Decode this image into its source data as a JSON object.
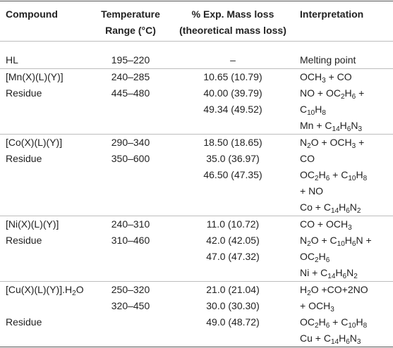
{
  "table": {
    "header": [
      [
        "Compound"
      ],
      [
        "Temperature",
        "Range (°C)"
      ],
      [
        "% Exp. Mass loss",
        "(theoretical mass loss)"
      ],
      [
        "Interpretation"
      ]
    ],
    "groups": [
      {
        "compound": [
          "HL"
        ],
        "temperature": [
          "195–220"
        ],
        "mass_loss": [
          "–"
        ],
        "interpretation": [
          "Melting point"
        ]
      },
      {
        "compound": [
          "[Mn(X)(L)(Y)]",
          "Residue",
          null,
          null
        ],
        "temperature": [
          "240–285",
          "445–480",
          null,
          null
        ],
        "mass_loss": [
          "10.65 (10.79)",
          "40.00 (39.79)",
          "49.34 (49.52)",
          null
        ],
        "interpretation": [
          "OCH3 + CO",
          "NO + OC2H6 +",
          "C10H8",
          "Mn + C14H6N3"
        ]
      },
      {
        "compound": [
          "[Co(X)(L)(Y)]",
          "Residue",
          null,
          null,
          null
        ],
        "temperature": [
          "290–340",
          "350–600",
          null,
          null,
          null
        ],
        "mass_loss": [
          "18.50 (18.65)",
          "35.0 (36.97)",
          "46.50 (47.35)",
          null,
          null
        ],
        "interpretation": [
          "N2O + OCH3 +",
          "CO",
          "OC2H6 + C10H8",
          "+ NO",
          "Co + C14H6N2"
        ]
      },
      {
        "compound": [
          "[Ni(X)(L)(Y)]",
          "Residue",
          null,
          null
        ],
        "temperature": [
          "240–310",
          "310–460",
          null,
          null
        ],
        "mass_loss": [
          "11.0 (10.72)",
          "42.0 (42.05)",
          "47.0 (47.32)",
          null
        ],
        "interpretation": [
          "CO + OCH3",
          "N2O + C10H6N +",
          "OC2H6",
          "Ni + C14H6N2"
        ]
      },
      {
        "compound": [
          "[Cu(X)(L)(Y)].H2O",
          null,
          "Residue",
          null
        ],
        "temperature": [
          "250–320",
          "320–450",
          null,
          null
        ],
        "mass_loss": [
          "21.0 (21.04)",
          "30.0 (30.30)",
          "49.0 (48.72)",
          null
        ],
        "interpretation": [
          "H2O +CO+2NO",
          "+ OCH3",
          "OC2H6 + C10H8",
          "Cu + C14H6N3"
        ]
      }
    ]
  }
}
